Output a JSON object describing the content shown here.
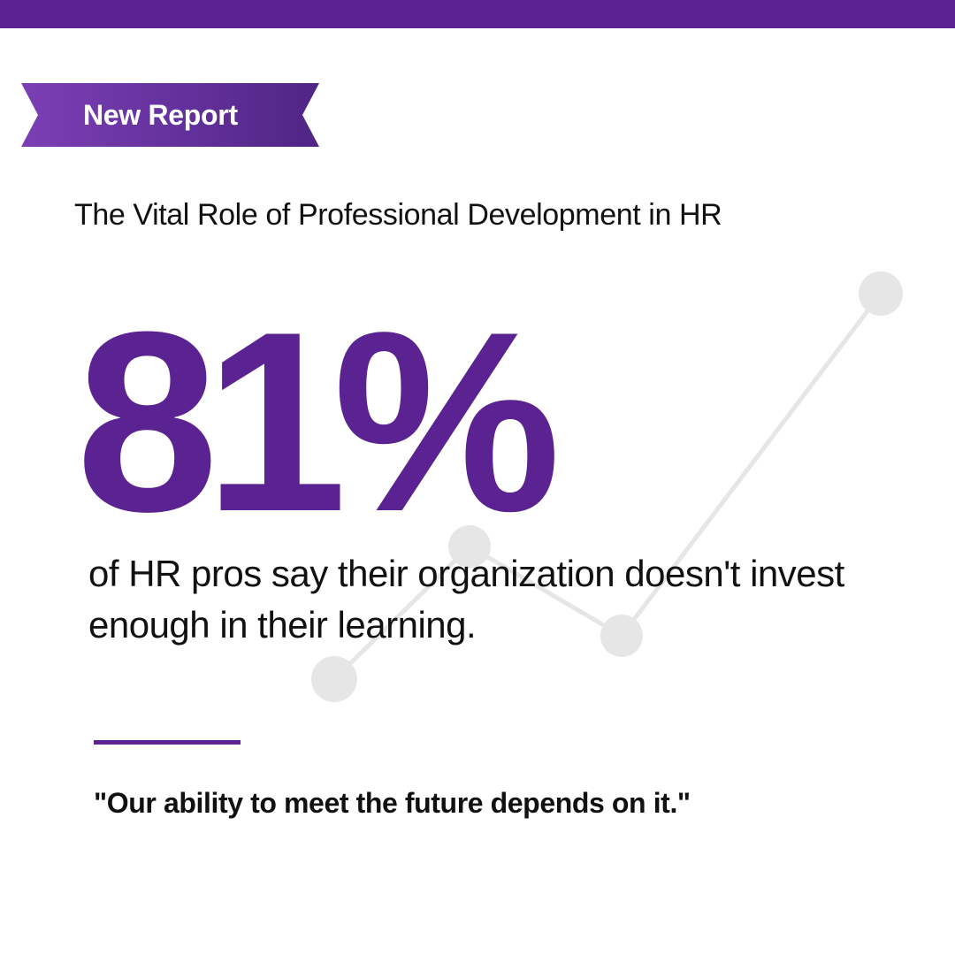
{
  "header": {
    "bar_color": "#5b2392"
  },
  "badge": {
    "label": "New Report",
    "color_start": "#7b3fb5",
    "color_end": "#4f2585"
  },
  "subtitle": "The Vital Role of Professional Development in HR",
  "stat": {
    "value": "81%",
    "description": "of HR pros say their organization doesn't invest enough in their learning."
  },
  "quote": "\"Our ability to meet the future depends on it.\"",
  "colors": {
    "accent": "#5b2392",
    "text": "#111111",
    "decoration": "#e6e6e6"
  },
  "decoration": {
    "icon": "line-graph-icon"
  }
}
